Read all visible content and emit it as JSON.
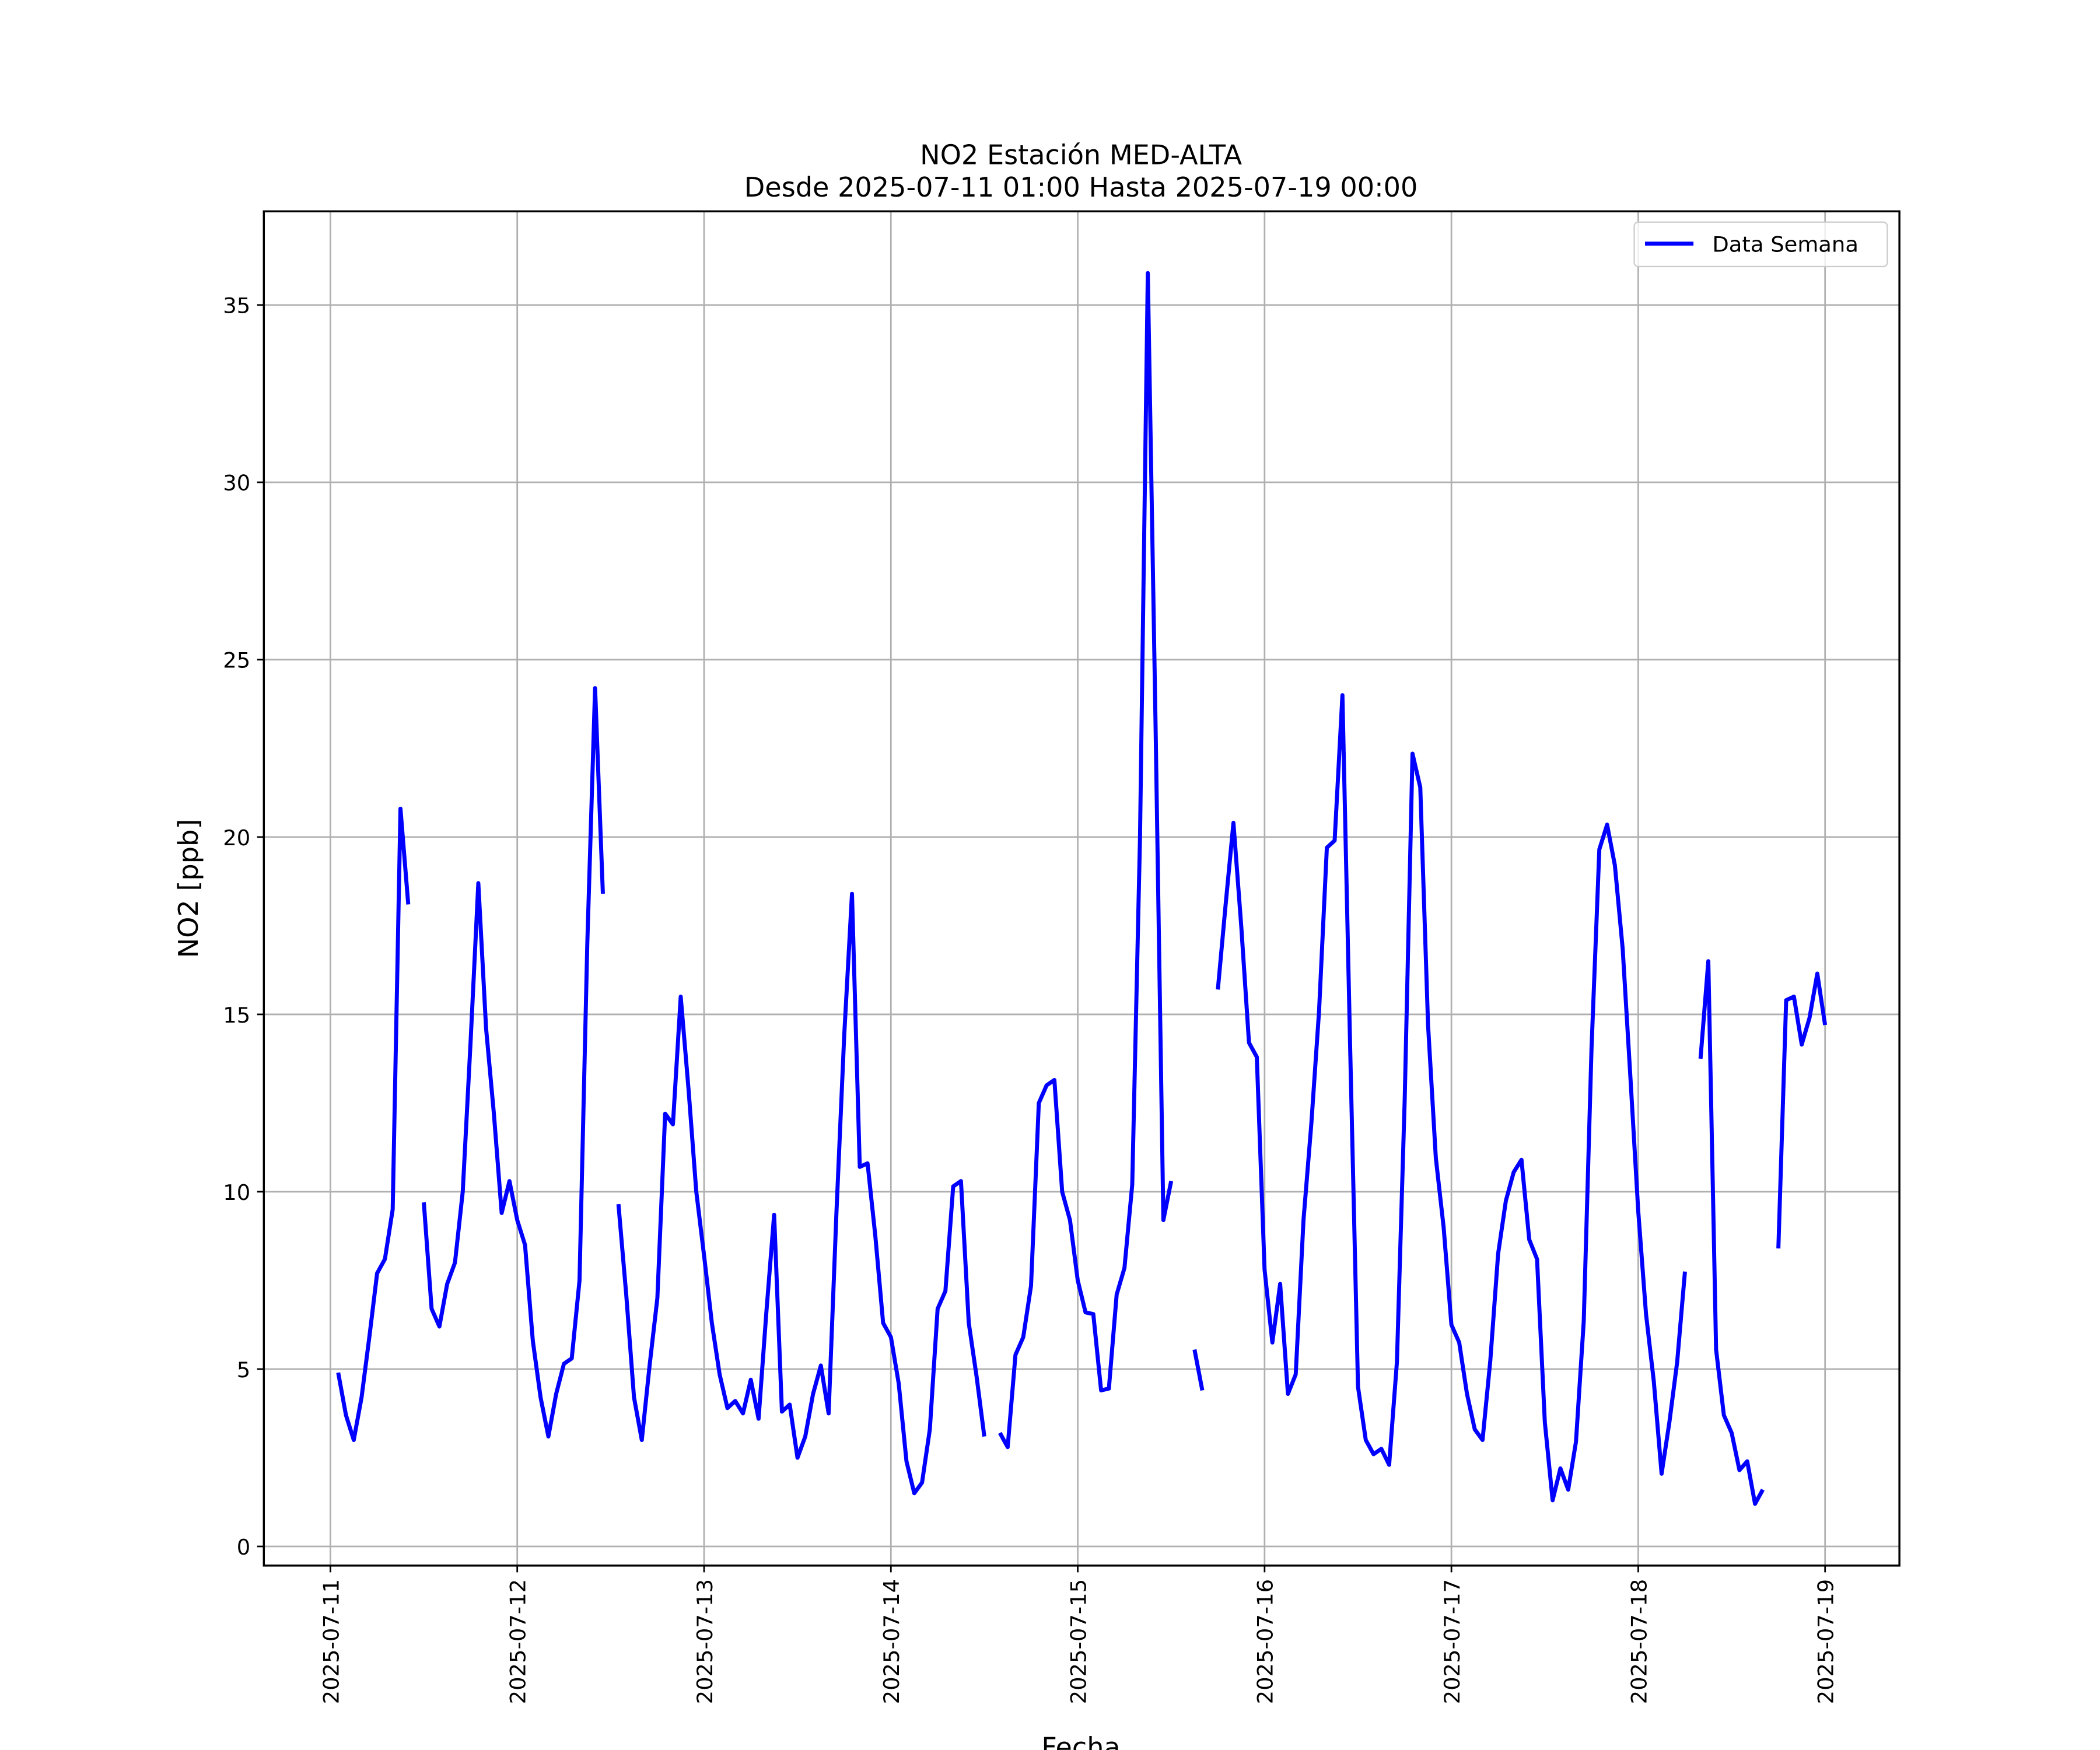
{
  "chart_data": {
    "type": "line",
    "title": "NO2 Estación MED-ALTA",
    "subtitle": "Desde 2025-07-11 01:00 Hasta 2025-07-19 00:00",
    "xlabel": "Fecha",
    "ylabel": "NO2 [ppb]",
    "x": [
      "2025-07-11 01:00",
      "2025-07-11 02:00",
      "2025-07-11 03:00",
      "2025-07-11 04:00",
      "2025-07-11 05:00",
      "2025-07-11 06:00",
      "2025-07-11 07:00",
      "2025-07-11 08:00",
      "2025-07-11 09:00",
      "2025-07-11 10:00",
      "2025-07-11 11:00",
      "2025-07-11 12:00",
      "2025-07-11 13:00",
      "2025-07-11 14:00",
      "2025-07-11 15:00",
      "2025-07-11 16:00",
      "2025-07-11 17:00",
      "2025-07-11 18:00",
      "2025-07-11 19:00",
      "2025-07-11 20:00",
      "2025-07-11 21:00",
      "2025-07-11 22:00",
      "2025-07-11 23:00",
      "2025-07-12 00:00",
      "2025-07-12 01:00",
      "2025-07-12 02:00",
      "2025-07-12 03:00",
      "2025-07-12 04:00",
      "2025-07-12 05:00",
      "2025-07-12 06:00",
      "2025-07-12 07:00",
      "2025-07-12 08:00",
      "2025-07-12 09:00",
      "2025-07-12 10:00",
      "2025-07-12 11:00",
      "2025-07-12 12:00",
      "2025-07-12 13:00",
      "2025-07-12 14:00",
      "2025-07-12 15:00",
      "2025-07-12 16:00",
      "2025-07-12 17:00",
      "2025-07-12 18:00",
      "2025-07-12 19:00",
      "2025-07-12 20:00",
      "2025-07-12 21:00",
      "2025-07-12 22:00",
      "2025-07-12 23:00",
      "2025-07-13 00:00",
      "2025-07-13 01:00",
      "2025-07-13 02:00",
      "2025-07-13 03:00",
      "2025-07-13 04:00",
      "2025-07-13 05:00",
      "2025-07-13 06:00",
      "2025-07-13 07:00",
      "2025-07-13 08:00",
      "2025-07-13 09:00",
      "2025-07-13 10:00",
      "2025-07-13 11:00",
      "2025-07-13 12:00",
      "2025-07-13 13:00",
      "2025-07-13 14:00",
      "2025-07-13 15:00",
      "2025-07-13 16:00",
      "2025-07-13 17:00",
      "2025-07-13 18:00",
      "2025-07-13 19:00",
      "2025-07-13 20:00",
      "2025-07-13 21:00",
      "2025-07-13 22:00",
      "2025-07-13 23:00",
      "2025-07-14 00:00",
      "2025-07-14 01:00",
      "2025-07-14 02:00",
      "2025-07-14 03:00",
      "2025-07-14 04:00",
      "2025-07-14 05:00",
      "2025-07-14 06:00",
      "2025-07-14 07:00",
      "2025-07-14 08:00",
      "2025-07-14 09:00",
      "2025-07-14 10:00",
      "2025-07-14 11:00",
      "2025-07-14 12:00",
      "2025-07-14 13:00",
      "2025-07-14 14:00",
      "2025-07-14 15:00",
      "2025-07-14 16:00",
      "2025-07-14 17:00",
      "2025-07-14 18:00",
      "2025-07-14 19:00",
      "2025-07-14 20:00",
      "2025-07-14 21:00",
      "2025-07-14 22:00",
      "2025-07-14 23:00",
      "2025-07-15 00:00",
      "2025-07-15 01:00",
      "2025-07-15 02:00",
      "2025-07-15 03:00",
      "2025-07-15 04:00",
      "2025-07-15 05:00",
      "2025-07-15 06:00",
      "2025-07-15 07:00",
      "2025-07-15 08:00",
      "2025-07-15 09:00",
      "2025-07-15 10:00",
      "2025-07-15 11:00",
      "2025-07-15 12:00",
      "2025-07-15 13:00",
      "2025-07-15 14:00",
      "2025-07-15 15:00",
      "2025-07-15 16:00",
      "2025-07-15 17:00",
      "2025-07-15 18:00",
      "2025-07-15 19:00",
      "2025-07-15 20:00",
      "2025-07-15 21:00",
      "2025-07-15 22:00",
      "2025-07-15 23:00",
      "2025-07-16 00:00",
      "2025-07-16 01:00",
      "2025-07-16 02:00",
      "2025-07-16 03:00",
      "2025-07-16 04:00",
      "2025-07-16 05:00",
      "2025-07-16 06:00",
      "2025-07-16 07:00",
      "2025-07-16 08:00",
      "2025-07-16 09:00",
      "2025-07-16 10:00",
      "2025-07-16 11:00",
      "2025-07-16 12:00",
      "2025-07-16 13:00",
      "2025-07-16 14:00",
      "2025-07-16 15:00",
      "2025-07-16 16:00",
      "2025-07-16 17:00",
      "2025-07-16 18:00",
      "2025-07-16 19:00",
      "2025-07-16 20:00",
      "2025-07-16 21:00",
      "2025-07-16 22:00",
      "2025-07-16 23:00",
      "2025-07-17 00:00",
      "2025-07-17 01:00",
      "2025-07-17 02:00",
      "2025-07-17 03:00",
      "2025-07-17 04:00",
      "2025-07-17 05:00",
      "2025-07-17 06:00",
      "2025-07-17 07:00",
      "2025-07-17 08:00",
      "2025-07-17 09:00",
      "2025-07-17 10:00",
      "2025-07-17 11:00",
      "2025-07-17 12:00",
      "2025-07-17 13:00",
      "2025-07-17 14:00",
      "2025-07-17 15:00",
      "2025-07-17 16:00",
      "2025-07-17 17:00",
      "2025-07-17 18:00",
      "2025-07-17 19:00",
      "2025-07-17 20:00",
      "2025-07-17 21:00",
      "2025-07-17 22:00",
      "2025-07-17 23:00",
      "2025-07-18 00:00",
      "2025-07-18 01:00",
      "2025-07-18 02:00",
      "2025-07-18 03:00",
      "2025-07-18 04:00",
      "2025-07-18 05:00",
      "2025-07-18 06:00",
      "2025-07-18 07:00",
      "2025-07-18 08:00",
      "2025-07-18 09:00",
      "2025-07-18 10:00",
      "2025-07-18 11:00",
      "2025-07-18 12:00",
      "2025-07-18 13:00",
      "2025-07-18 14:00",
      "2025-07-18 15:00",
      "2025-07-18 16:00",
      "2025-07-18 17:00",
      "2025-07-18 18:00",
      "2025-07-18 19:00",
      "2025-07-18 20:00",
      "2025-07-18 21:00",
      "2025-07-18 22:00",
      "2025-07-18 23:00",
      "2025-07-19 00:00"
    ],
    "series": [
      {
        "name": "Data Semana",
        "color": "#0000ff",
        "values": [
          4.9,
          3.7,
          3.0,
          4.2,
          5.9,
          7.7,
          8.1,
          9.5,
          20.8,
          18.1,
          null,
          9.7,
          6.7,
          6.2,
          7.4,
          8.0,
          10.0,
          14.2,
          18.7,
          14.6,
          12.2,
          9.4,
          10.3,
          9.2,
          8.5,
          5.8,
          4.2,
          3.1,
          4.3,
          5.15,
          5.3,
          7.5,
          17.0,
          24.2,
          18.4,
          null,
          9.65,
          7.1,
          4.2,
          3.0,
          5.1,
          7.0,
          12.2,
          11.9,
          15.5,
          12.9,
          10.0,
          8.2,
          6.3,
          4.85,
          3.9,
          4.1,
          3.75,
          4.7,
          3.6,
          6.6,
          9.35,
          3.8,
          4.0,
          2.5,
          3.1,
          4.3,
          5.1,
          3.75,
          9.4,
          14.4,
          18.4,
          10.7,
          10.8,
          8.75,
          6.3,
          5.9,
          4.6,
          2.4,
          1.5,
          1.8,
          3.3,
          6.7,
          7.2,
          10.15,
          10.3,
          6.3,
          4.8,
          3.1,
          null,
          3.2,
          2.8,
          5.4,
          5.9,
          7.35,
          12.5,
          13.0,
          13.15,
          10.0,
          9.2,
          7.5,
          6.6,
          6.55,
          4.4,
          4.45,
          7.1,
          7.85,
          10.2,
          20.0,
          35.9,
          23.1,
          9.2,
          10.3,
          null,
          null,
          5.55,
          4.4,
          null,
          15.7,
          18.1,
          20.4,
          17.5,
          14.2,
          13.8,
          7.8,
          5.75,
          7.4,
          4.3,
          4.85,
          9.2,
          11.9,
          15.1,
          19.7,
          19.9,
          24.0,
          14.0,
          4.5,
          3.0,
          2.6,
          2.75,
          2.3,
          5.2,
          12.6,
          22.35,
          21.4,
          14.7,
          10.95,
          9.0,
          6.25,
          5.75,
          4.3,
          3.3,
          3.0,
          5.25,
          8.25,
          9.75,
          10.55,
          10.9,
          8.65,
          8.1,
          3.5,
          1.3,
          2.2,
          1.6,
          2.95,
          6.35,
          14.05,
          19.65,
          20.35,
          19.2,
          16.85,
          13.2,
          9.45,
          6.55,
          4.65,
          2.05,
          3.5,
          5.2,
          7.75,
          null,
          13.75,
          16.5,
          5.55,
          3.7,
          3.2,
          2.15,
          2.4,
          1.2,
          1.6,
          null,
          8.4,
          15.4,
          15.5,
          14.15,
          14.9,
          16.15,
          14.7
        ]
      }
    ],
    "xlim": [
      "2025-07-10 15:27",
      "2025-07-19 09:33"
    ],
    "xticks": [
      "2025-07-11",
      "2025-07-12",
      "2025-07-13",
      "2025-07-14",
      "2025-07-15",
      "2025-07-16",
      "2025-07-17",
      "2025-07-18",
      "2025-07-19"
    ],
    "ylim": [
      -0.54,
      37.64
    ],
    "yticks": [
      0,
      5,
      10,
      15,
      20,
      25,
      30,
      35
    ],
    "grid": true,
    "legend": "upper right"
  }
}
